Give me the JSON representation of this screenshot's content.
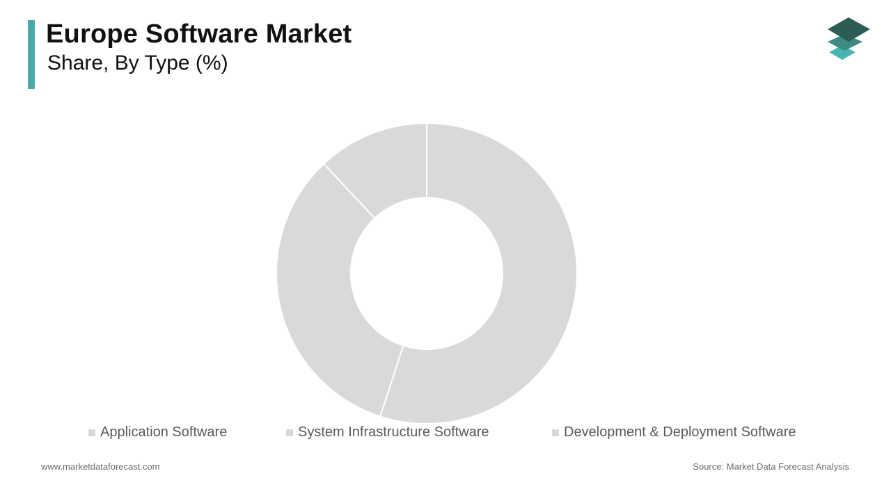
{
  "header": {
    "title": "Europe Software Market",
    "subtitle": "Share, By Type (%)"
  },
  "colors": {
    "accent": "#49aaa8",
    "slice": "#d9d9d9",
    "slice_border": "#ffffff",
    "legend_text": "#595959"
  },
  "chart_data": {
    "type": "pie",
    "donut": true,
    "categories": [
      "Application Software",
      "System Infrastructure Software",
      "Development & Deployment Software"
    ],
    "values": [
      55,
      33,
      12
    ],
    "unit": "%",
    "legend_position": "bottom"
  },
  "footer": {
    "website": "www.marketdataforecast.com",
    "source": "Source: Market Data Forecast Analysis"
  },
  "logo_icon": "stacked-layers-icon"
}
